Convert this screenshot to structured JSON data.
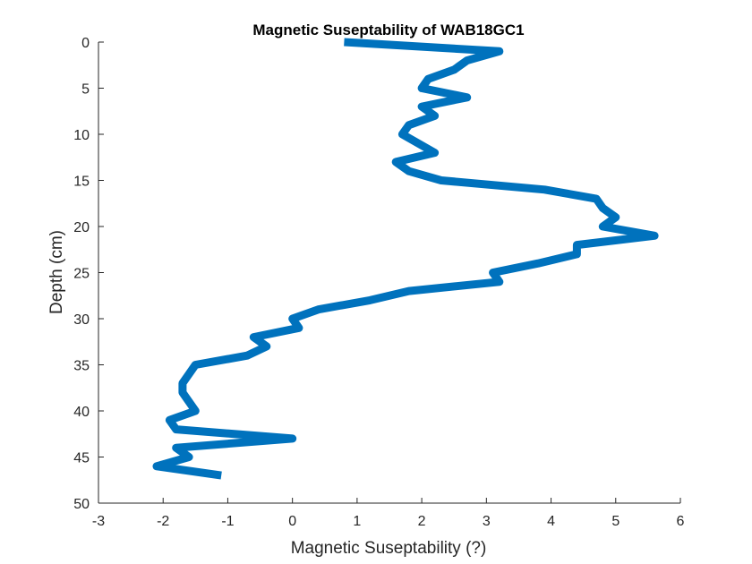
{
  "chart_data": {
    "type": "line",
    "title": "Magnetic Suseptability of WAB18GC1",
    "xlabel": "Magnetic Suseptability (?)",
    "ylabel": "Depth (cm)",
    "xlim": [
      -3,
      6
    ],
    "ylim": [
      0,
      50
    ],
    "y_reversed": true,
    "grid": false,
    "x_ticks": [
      -3,
      -2,
      -1,
      0,
      1,
      2,
      3,
      4,
      5,
      6
    ],
    "y_ticks": [
      0,
      5,
      10,
      15,
      20,
      25,
      30,
      35,
      40,
      45,
      50
    ],
    "line_color": "#0072BD",
    "series": [
      {
        "x": [
          0.8,
          3.2,
          2.7,
          2.5,
          2.1,
          2.0,
          2.7,
          2.0,
          2.2,
          1.8,
          1.7,
          2.2,
          1.6,
          1.8,
          2.3,
          3.9,
          4.7,
          4.8,
          5.0,
          4.8,
          5.6,
          4.4,
          4.4,
          3.8,
          3.1,
          3.2,
          1.8,
          1.2,
          0.4,
          0.0,
          0.1,
          -0.6,
          -0.4,
          -0.7,
          -1.5,
          -1.6,
          -1.7,
          -1.7,
          -1.5,
          -1.9,
          -1.8,
          0.0,
          -1.8,
          -1.6,
          -2.1,
          -1.1
        ],
        "y": [
          0,
          1,
          2,
          3,
          4,
          5,
          6,
          7,
          8,
          9,
          10,
          12,
          13,
          14,
          15,
          16,
          17,
          18,
          19,
          20,
          21,
          22,
          23,
          24,
          25,
          26,
          27,
          28,
          29,
          30,
          31,
          32,
          33,
          34,
          35,
          36,
          37,
          38,
          40,
          41,
          42,
          43,
          44,
          45,
          46,
          47
        ]
      }
    ]
  }
}
